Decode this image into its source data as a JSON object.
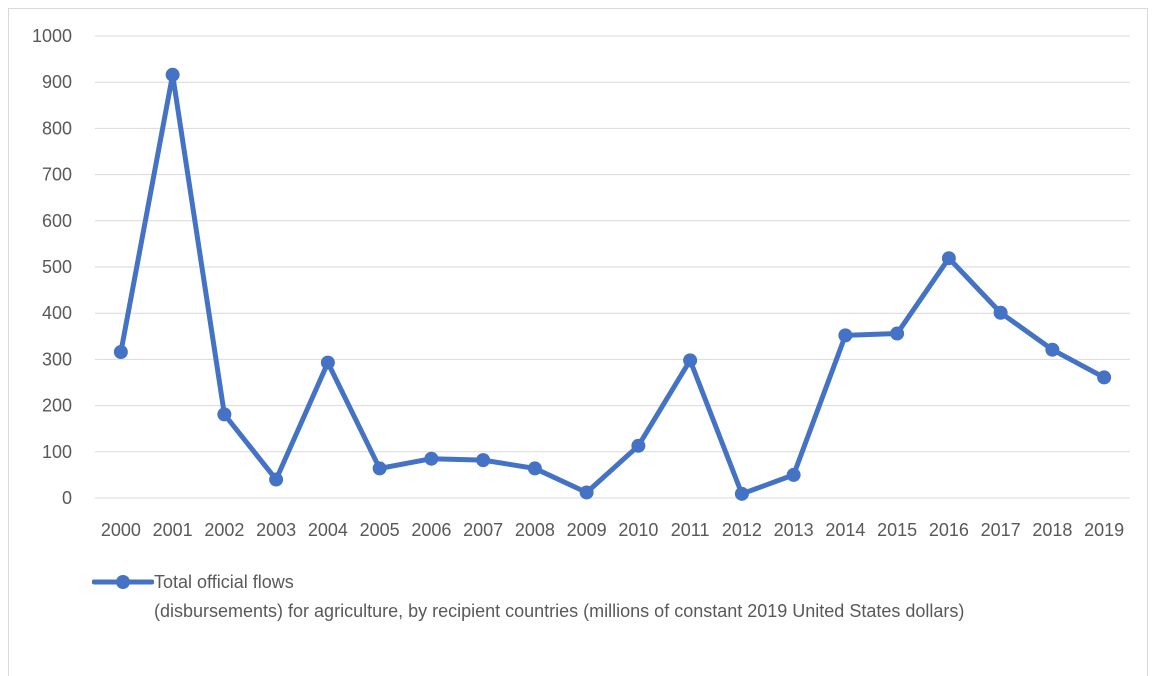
{
  "chart_data": {
    "type": "line",
    "x": [
      "2000",
      "2001",
      "2002",
      "2003",
      "2004",
      "2005",
      "2006",
      "2007",
      "2008",
      "2009",
      "2010",
      "2011",
      "2012",
      "2013",
      "2014",
      "2015",
      "2016",
      "2017",
      "2018",
      "2019"
    ],
    "series": [
      {
        "name": "Total official flows\n(disbursements) for agriculture, by recipient countries (millions of constant 2019 United States dollars)",
        "values": [
          316,
          916,
          181,
          40,
          293,
          64,
          85,
          82,
          64,
          12,
          113,
          298,
          9,
          50,
          352,
          356,
          519,
          401,
          321,
          261
        ],
        "color": "#4472c4"
      }
    ],
    "y_ticks": [
      "0",
      "100",
      "200",
      "300",
      "400",
      "500",
      "600",
      "700",
      "800",
      "900",
      "1000"
    ],
    "ylim": [
      0,
      1000
    ],
    "grid": true,
    "legend_position": "bottom-left",
    "marker": "circle"
  }
}
